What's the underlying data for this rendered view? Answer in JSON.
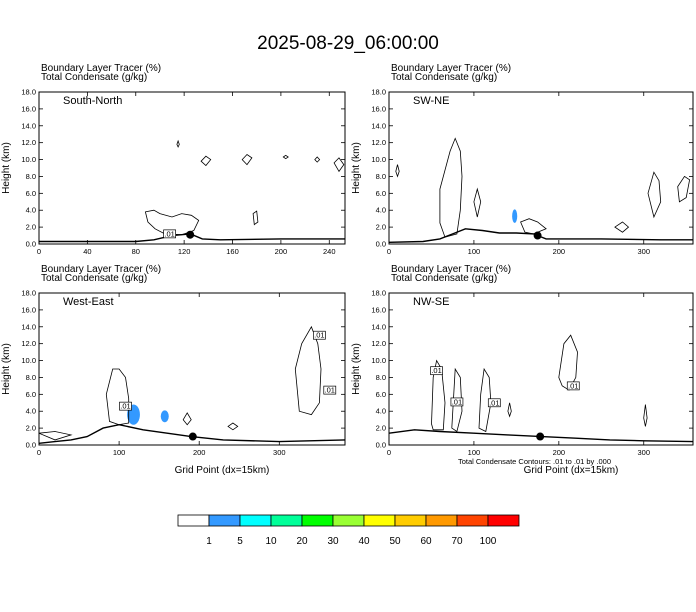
{
  "title": "2025-08-29_06:00:00",
  "colors": {
    "tracer": "#3399ff",
    "terrain": "#000000",
    "contour": "#000000",
    "colorbar": [
      "#ffffff",
      "#3399ff",
      "#00ffff",
      "#00ff99",
      "#00ff00",
      "#99ff33",
      "#ffff00",
      "#ffcc00",
      "#ff9900",
      "#ff4400",
      "#ff0000"
    ]
  },
  "colorbar_labels": [
    "1",
    "5",
    "10",
    "20",
    "30",
    "40",
    "50",
    "60",
    "70",
    "100"
  ],
  "contour_note": "Total Condensate Contours: .01 to .01 by .000",
  "chart_data": [
    {
      "type": "contour",
      "panel": "South-North",
      "header_line1": "Boundary Layer Tracer   (%)",
      "header_line2": "Total Condensate   (g/kg)",
      "xlabel": "",
      "ylabel": "Height (km)",
      "xlim": [
        0,
        253
      ],
      "ylim": [
        0,
        18
      ],
      "xticks": [
        0,
        40,
        80,
        120,
        160,
        200,
        240
      ],
      "yticks": [
        "0.0",
        "2.0",
        "4.0",
        "6.0",
        "8.0",
        "10.0",
        "12.0",
        "14.0",
        "16.0",
        "18.0"
      ],
      "terrain": [
        [
          0,
          0.3
        ],
        [
          80,
          0.3
        ],
        [
          95,
          0.5
        ],
        [
          110,
          1.0
        ],
        [
          118,
          1.1
        ],
        [
          125,
          1.2
        ],
        [
          135,
          0.6
        ],
        [
          150,
          0.5
        ],
        [
          200,
          0.6
        ],
        [
          253,
          0.6
        ]
      ],
      "contours": [
        [
          [
            88,
            3.8
          ],
          [
            95,
            4.0
          ],
          [
            100,
            3.6
          ],
          [
            110,
            3.2
          ],
          [
            118,
            3.6
          ],
          [
            126,
            3.4
          ],
          [
            132,
            2.8
          ],
          [
            128,
            1.6
          ],
          [
            118,
            1.1
          ],
          [
            104,
            1.2
          ],
          [
            96,
            1.8
          ],
          [
            90,
            2.6
          ],
          [
            88,
            3.8
          ]
        ],
        [
          [
            177,
            3.6
          ],
          [
            180,
            3.9
          ],
          [
            181,
            2.6
          ],
          [
            178,
            2.3
          ],
          [
            177,
            3.6
          ]
        ],
        [
          [
            134,
            9.8
          ],
          [
            138,
            10.4
          ],
          [
            142,
            10.0
          ],
          [
            138,
            9.3
          ],
          [
            134,
            9.8
          ]
        ],
        [
          [
            168,
            10.0
          ],
          [
            172,
            10.6
          ],
          [
            176,
            10.2
          ],
          [
            172,
            9.4
          ],
          [
            168,
            10.0
          ]
        ],
        [
          [
            244,
            9.6
          ],
          [
            248,
            10.2
          ],
          [
            252,
            9.4
          ],
          [
            248,
            8.6
          ],
          [
            244,
            9.6
          ]
        ],
        [
          [
            228,
            10.0
          ],
          [
            230,
            10.3
          ],
          [
            232,
            10.0
          ],
          [
            230,
            9.7
          ],
          [
            228,
            10.0
          ]
        ],
        [
          [
            202,
            10.3
          ],
          [
            204,
            10.5
          ],
          [
            206,
            10.3
          ],
          [
            204,
            10.1
          ],
          [
            202,
            10.3
          ]
        ],
        [
          [
            114,
            11.8
          ],
          [
            115,
            12.2
          ],
          [
            116,
            11.8
          ],
          [
            115,
            11.5
          ],
          [
            114,
            11.8
          ]
        ]
      ],
      "tracer_blobs": [],
      "contour_labels": [
        {
          "x": 108,
          "y": 1.2,
          "text": ".01"
        }
      ],
      "marker": {
        "x": 125,
        "y": 1.1
      }
    },
    {
      "type": "contour",
      "panel": "SW-NE",
      "header_line1": "Boundary Layer Tracer   (%)",
      "header_line2": "Total Condensate   (g/kg)",
      "xlabel": "",
      "ylabel": "Height (km)",
      "xlim": [
        0,
        358
      ],
      "ylim": [
        0,
        18
      ],
      "xticks": [
        0,
        100,
        200,
        300
      ],
      "yticks": [
        "0.0",
        "2.0",
        "4.0",
        "6.0",
        "8.0",
        "10.0",
        "12.0",
        "14.0",
        "16.0",
        "18.0"
      ],
      "terrain": [
        [
          0,
          0.2
        ],
        [
          40,
          0.3
        ],
        [
          60,
          0.6
        ],
        [
          75,
          1.2
        ],
        [
          90,
          1.8
        ],
        [
          110,
          1.6
        ],
        [
          130,
          1.3
        ],
        [
          150,
          1.3
        ],
        [
          170,
          1.2
        ],
        [
          185,
          0.6
        ],
        [
          250,
          0.6
        ],
        [
          320,
          0.5
        ],
        [
          358,
          0.5
        ]
      ],
      "contours": [
        [
          [
            60,
            6.5
          ],
          [
            72,
            11.0
          ],
          [
            78,
            12.5
          ],
          [
            84,
            11.0
          ],
          [
            86,
            8.0
          ],
          [
            84,
            4.0
          ],
          [
            80,
            1.2
          ],
          [
            66,
            0.8
          ],
          [
            60,
            2.5
          ],
          [
            60,
            6.5
          ]
        ],
        [
          [
            100,
            5.0
          ],
          [
            104,
            6.5
          ],
          [
            108,
            5.0
          ],
          [
            104,
            3.2
          ],
          [
            100,
            5.0
          ]
        ],
        [
          [
            155,
            2.6
          ],
          [
            165,
            3.0
          ],
          [
            175,
            2.6
          ],
          [
            185,
            1.8
          ],
          [
            170,
            1.2
          ],
          [
            160,
            1.4
          ],
          [
            155,
            2.6
          ]
        ],
        [
          [
            305,
            6.0
          ],
          [
            312,
            8.5
          ],
          [
            318,
            7.5
          ],
          [
            320,
            5.0
          ],
          [
            312,
            3.2
          ],
          [
            305,
            6.0
          ]
        ],
        [
          [
            340,
            6.8
          ],
          [
            348,
            8.0
          ],
          [
            354,
            7.6
          ],
          [
            350,
            5.5
          ],
          [
            342,
            5.0
          ],
          [
            340,
            6.8
          ]
        ],
        [
          [
            266,
            2.0
          ],
          [
            275,
            2.6
          ],
          [
            282,
            2.0
          ],
          [
            275,
            1.4
          ],
          [
            266,
            2.0
          ]
        ],
        [
          [
            8,
            8.6
          ],
          [
            10,
            9.4
          ],
          [
            12,
            8.6
          ],
          [
            10,
            8.0
          ],
          [
            8,
            8.6
          ]
        ]
      ],
      "tracer_blobs": [
        {
          "cx": 148,
          "cy": 3.3,
          "rx": 3,
          "ry": 0.8
        }
      ],
      "contour_labels": [],
      "marker": {
        "x": 175,
        "y": 1.0
      }
    },
    {
      "type": "contour",
      "panel": "West-East",
      "header_line1": "Boundary Layer Tracer   (%)",
      "header_line2": "Total Condensate   (g/kg)",
      "xlabel": "Grid Point (dx=15km)",
      "ylabel": "Height (km)",
      "xlim": [
        0,
        382
      ],
      "ylim": [
        0,
        18
      ],
      "xticks": [
        0,
        100,
        200,
        300
      ],
      "yticks": [
        "0.0",
        "2.0",
        "4.0",
        "6.0",
        "8.0",
        "10.0",
        "12.0",
        "14.0",
        "16.0",
        "18.0"
      ],
      "terrain": [
        [
          0,
          0.2
        ],
        [
          20,
          0.4
        ],
        [
          40,
          0.6
        ],
        [
          60,
          1.0
        ],
        [
          72,
          1.6
        ],
        [
          80,
          2.0
        ],
        [
          100,
          2.4
        ],
        [
          130,
          1.8
        ],
        [
          160,
          1.4
        ],
        [
          190,
          1.0
        ],
        [
          230,
          0.6
        ],
        [
          300,
          0.4
        ],
        [
          382,
          0.6
        ]
      ],
      "contours": [
        [
          [
            84,
            6.0
          ],
          [
            92,
            9.0
          ],
          [
            100,
            9.0
          ],
          [
            108,
            8.0
          ],
          [
            112,
            5.5
          ],
          [
            112,
            2.6
          ],
          [
            100,
            2.4
          ],
          [
            88,
            2.8
          ],
          [
            84,
            6.0
          ]
        ],
        [
          [
            320,
            9.0
          ],
          [
            328,
            12.0
          ],
          [
            340,
            14.0
          ],
          [
            348,
            12.0
          ],
          [
            352,
            9.0
          ],
          [
            350,
            5.0
          ],
          [
            340,
            3.6
          ],
          [
            325,
            4.0
          ],
          [
            320,
            9.0
          ]
        ],
        [
          [
            180,
            3.0
          ],
          [
            185,
            3.8
          ],
          [
            190,
            3.0
          ],
          [
            185,
            2.4
          ],
          [
            180,
            3.0
          ]
        ],
        [
          [
            236,
            2.2
          ],
          [
            242,
            2.6
          ],
          [
            248,
            2.2
          ],
          [
            242,
            1.8
          ],
          [
            236,
            2.2
          ]
        ],
        [
          [
            0,
            1.4
          ],
          [
            20,
            1.6
          ],
          [
            40,
            1.2
          ],
          [
            20,
            0.6
          ],
          [
            0,
            1.4
          ]
        ]
      ],
      "tracer_blobs": [
        {
          "cx": 118,
          "cy": 3.6,
          "rx": 8,
          "ry": 1.2
        },
        {
          "cx": 157,
          "cy": 3.4,
          "rx": 5,
          "ry": 0.7
        }
      ],
      "contour_labels": [
        {
          "x": 108,
          "y": 4.6,
          "text": ".01"
        },
        {
          "x": 350,
          "y": 13.0,
          "text": ".01"
        },
        {
          "x": 363,
          "y": 6.5,
          "text": ".01"
        }
      ],
      "marker": {
        "x": 192,
        "y": 1.0
      }
    },
    {
      "type": "contour",
      "panel": "NW-SE",
      "header_line1": "Boundary Layer Tracer   (%)",
      "header_line2": "Total Condensate   (g/kg)",
      "xlabel": "Grid Point (dx=15km)",
      "ylabel": "Height (km)",
      "xlim": [
        0,
        358
      ],
      "ylim": [
        0,
        18
      ],
      "xticks": [
        0,
        100,
        200,
        300
      ],
      "yticks": [
        "0.0",
        "2.0",
        "4.0",
        "6.0",
        "8.0",
        "10.0",
        "12.0",
        "14.0",
        "16.0",
        "18.0"
      ],
      "terrain": [
        [
          0,
          1.4
        ],
        [
          30,
          1.8
        ],
        [
          60,
          1.6
        ],
        [
          100,
          1.4
        ],
        [
          140,
          1.2
        ],
        [
          180,
          1.0
        ],
        [
          220,
          0.8
        ],
        [
          260,
          0.6
        ],
        [
          300,
          0.5
        ],
        [
          358,
          0.4
        ]
      ],
      "contours": [
        [
          [
            50,
            2.5
          ],
          [
            52,
            8.0
          ],
          [
            56,
            10.0
          ],
          [
            62,
            9.0
          ],
          [
            66,
            5.0
          ],
          [
            64,
            1.8
          ],
          [
            52,
            1.8
          ],
          [
            50,
            2.5
          ]
        ],
        [
          [
            106,
            2.0
          ],
          [
            108,
            6.0
          ],
          [
            112,
            9.0
          ],
          [
            118,
            8.0
          ],
          [
            120,
            5.0
          ],
          [
            114,
            1.6
          ],
          [
            106,
            2.0
          ]
        ],
        [
          [
            200,
            8.0
          ],
          [
            206,
            12.0
          ],
          [
            214,
            13.0
          ],
          [
            222,
            11.0
          ],
          [
            220,
            8.0
          ],
          [
            212,
            6.5
          ],
          [
            204,
            7.0
          ],
          [
            200,
            8.0
          ]
        ],
        [
          [
            74,
            2.0
          ],
          [
            78,
            9.0
          ],
          [
            84,
            8.0
          ],
          [
            86,
            4.0
          ],
          [
            80,
            1.6
          ],
          [
            74,
            2.0
          ]
        ],
        [
          [
            140,
            4.0
          ],
          [
            142,
            5.0
          ],
          [
            144,
            4.0
          ],
          [
            142,
            3.4
          ],
          [
            140,
            4.0
          ]
        ],
        [
          [
            300,
            3.2
          ],
          [
            302,
            4.8
          ],
          [
            304,
            3.2
          ],
          [
            302,
            2.2
          ],
          [
            300,
            3.2
          ]
        ]
      ],
      "tracer_blobs": [],
      "contour_labels": [
        {
          "x": 56,
          "y": 8.8,
          "text": ".01"
        },
        {
          "x": 80,
          "y": 5.1,
          "text": ".01"
        },
        {
          "x": 124,
          "y": 5.0,
          "text": ".01"
        },
        {
          "x": 217,
          "y": 7.0,
          "text": ".01"
        }
      ],
      "marker": {
        "x": 178,
        "y": 1.0
      }
    }
  ]
}
